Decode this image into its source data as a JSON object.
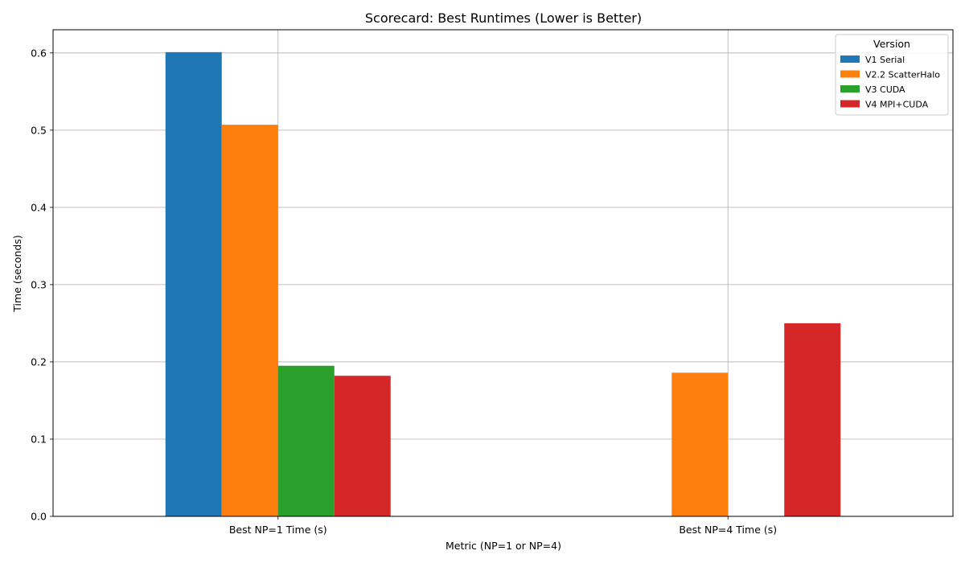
{
  "chart_data": {
    "type": "bar",
    "title": "Scorecard: Best Runtimes (Lower is Better)",
    "xlabel": "Metric (NP=1 or NP=4)",
    "ylabel": "Time (seconds)",
    "categories": [
      "Best NP=1 Time (s)",
      "Best NP=4 Time (s)"
    ],
    "ylim": [
      0,
      0.63
    ],
    "yticks": [
      0.0,
      0.1,
      0.2,
      0.3,
      0.4,
      0.5,
      0.6
    ],
    "ytick_labels": [
      "0.0",
      "0.1",
      "0.2",
      "0.3",
      "0.4",
      "0.5",
      "0.6"
    ],
    "grid": true,
    "legend": {
      "title": "Version",
      "position": "top-right"
    },
    "series": [
      {
        "name": "V1 Serial",
        "color": "#1f77b4",
        "values": [
          0.601,
          null
        ]
      },
      {
        "name": "V2.2 ScatterHalo",
        "color": "#ff7f0e",
        "values": [
          0.507,
          0.186
        ]
      },
      {
        "name": "V3 CUDA",
        "color": "#2ca02c",
        "values": [
          0.195,
          null
        ]
      },
      {
        "name": "V4 MPI+CUDA",
        "color": "#d62728",
        "values": [
          0.182,
          0.25
        ]
      }
    ]
  }
}
